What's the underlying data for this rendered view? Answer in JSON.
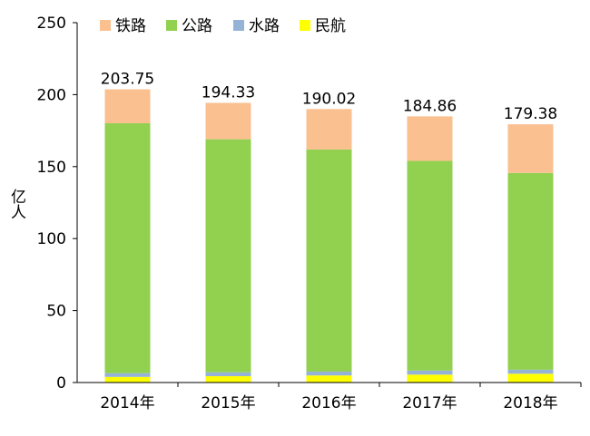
{
  "chart_data": {
    "type": "bar",
    "stacked": true,
    "categories": [
      "2014年",
      "2015年",
      "2016年",
      "2017年",
      "2018年"
    ],
    "series": [
      {
        "name": "民航",
        "color": "#ffff00",
        "values": [
          3.9,
          4.4,
          4.9,
          5.5,
          6.1
        ]
      },
      {
        "name": "水路",
        "color": "#95b3d7",
        "values": [
          2.6,
          2.7,
          2.7,
          2.8,
          2.8
        ]
      },
      {
        "name": "公路",
        "color": "#92d050",
        "values": [
          173.6,
          161.9,
          154.3,
          145.7,
          136.7
        ]
      },
      {
        "name": "铁路",
        "color": "#fac090",
        "values": [
          23.6,
          25.3,
          28.1,
          30.9,
          33.8
        ]
      }
    ],
    "totals": [
      "203.75",
      "194.33",
      "190.02",
      "184.86",
      "179.38"
    ],
    "ylabel": "亿人",
    "ylim": [
      0,
      250
    ],
    "yticks": [
      "0",
      "50",
      "100",
      "150",
      "200",
      "250"
    ],
    "legend_order": [
      "铁路",
      "公路",
      "水路",
      "民航"
    ],
    "legend_position": "top",
    "grid": false
  }
}
